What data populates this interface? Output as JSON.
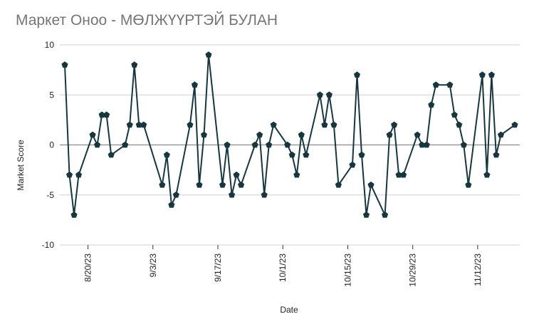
{
  "chart_data": {
    "type": "line",
    "title": "Маркет Оноо - МӨЛЖҮҮРТЭЙ БУЛАН",
    "xlabel": "Date",
    "ylabel": "Market Score",
    "ylim": [
      -10,
      10
    ],
    "y_ticks": [
      10,
      5,
      0,
      -5,
      -10
    ],
    "x_tick_labels": [
      "8/20/23",
      "9/3/23",
      "9/17/23",
      "10/1/23",
      "10/15/23",
      "10/29/23",
      "11/12/23"
    ],
    "x_tick_dates": [
      "2023-08-20",
      "2023-09-03",
      "2023-09-17",
      "2023-10-01",
      "2023-10-15",
      "2023-10-29",
      "2023-11-12"
    ],
    "grid": true,
    "legend": "none",
    "line_color": "#17363d",
    "series": [
      {
        "points": [
          {
            "x": "2023-08-15",
            "y": 8
          },
          {
            "x": "2023-08-16",
            "y": -3
          },
          {
            "x": "2023-08-17",
            "y": -7
          },
          {
            "x": "2023-08-18",
            "y": -3
          },
          {
            "x": "2023-08-21",
            "y": 1
          },
          {
            "x": "2023-08-22",
            "y": 0
          },
          {
            "x": "2023-08-23",
            "y": 3
          },
          {
            "x": "2023-08-24",
            "y": 3
          },
          {
            "x": "2023-08-25",
            "y": -1
          },
          {
            "x": "2023-08-28",
            "y": 0
          },
          {
            "x": "2023-08-29",
            "y": 2
          },
          {
            "x": "2023-08-30",
            "y": 8
          },
          {
            "x": "2023-08-31",
            "y": 2
          },
          {
            "x": "2023-09-01",
            "y": 2
          },
          {
            "x": "2023-09-05",
            "y": -4
          },
          {
            "x": "2023-09-06",
            "y": -1
          },
          {
            "x": "2023-09-07",
            "y": -6
          },
          {
            "x": "2023-09-08",
            "y": -5
          },
          {
            "x": "2023-09-11",
            "y": 2
          },
          {
            "x": "2023-09-12",
            "y": 6
          },
          {
            "x": "2023-09-13",
            "y": -4
          },
          {
            "x": "2023-09-14",
            "y": 1
          },
          {
            "x": "2023-09-15",
            "y": 9
          },
          {
            "x": "2023-09-18",
            "y": -4
          },
          {
            "x": "2023-09-19",
            "y": 0
          },
          {
            "x": "2023-09-20",
            "y": -5
          },
          {
            "x": "2023-09-21",
            "y": -3
          },
          {
            "x": "2023-09-22",
            "y": -4
          },
          {
            "x": "2023-09-25",
            "y": 0
          },
          {
            "x": "2023-09-26",
            "y": 1
          },
          {
            "x": "2023-09-27",
            "y": -5
          },
          {
            "x": "2023-09-28",
            "y": 0
          },
          {
            "x": "2023-09-29",
            "y": 2
          },
          {
            "x": "2023-10-02",
            "y": 0
          },
          {
            "x": "2023-10-03",
            "y": -1
          },
          {
            "x": "2023-10-04",
            "y": -3
          },
          {
            "x": "2023-10-05",
            "y": 1
          },
          {
            "x": "2023-10-06",
            "y": -1
          },
          {
            "x": "2023-10-09",
            "y": 5
          },
          {
            "x": "2023-10-10",
            "y": 2
          },
          {
            "x": "2023-10-11",
            "y": 5
          },
          {
            "x": "2023-10-12",
            "y": 2
          },
          {
            "x": "2023-10-13",
            "y": -4
          },
          {
            "x": "2023-10-16",
            "y": -2
          },
          {
            "x": "2023-10-17",
            "y": 7
          },
          {
            "x": "2023-10-18",
            "y": -1
          },
          {
            "x": "2023-10-19",
            "y": -7
          },
          {
            "x": "2023-10-20",
            "y": -4
          },
          {
            "x": "2023-10-23",
            "y": -7
          },
          {
            "x": "2023-10-24",
            "y": 1
          },
          {
            "x": "2023-10-25",
            "y": 2
          },
          {
            "x": "2023-10-26",
            "y": -3
          },
          {
            "x": "2023-10-27",
            "y": -3
          },
          {
            "x": "2023-10-30",
            "y": 1
          },
          {
            "x": "2023-10-31",
            "y": 0
          },
          {
            "x": "2023-11-01",
            "y": 0
          },
          {
            "x": "2023-11-02",
            "y": 4
          },
          {
            "x": "2023-11-03",
            "y": 6
          },
          {
            "x": "2023-11-06",
            "y": 6
          },
          {
            "x": "2023-11-07",
            "y": 3
          },
          {
            "x": "2023-11-08",
            "y": 2
          },
          {
            "x": "2023-11-09",
            "y": 0
          },
          {
            "x": "2023-11-10",
            "y": -4
          },
          {
            "x": "2023-11-13",
            "y": 7
          },
          {
            "x": "2023-11-14",
            "y": -3
          },
          {
            "x": "2023-11-15",
            "y": 7
          },
          {
            "x": "2023-11-16",
            "y": -1
          },
          {
            "x": "2023-11-17",
            "y": 1
          },
          {
            "x": "2023-11-20",
            "y": 2
          }
        ]
      }
    ]
  }
}
